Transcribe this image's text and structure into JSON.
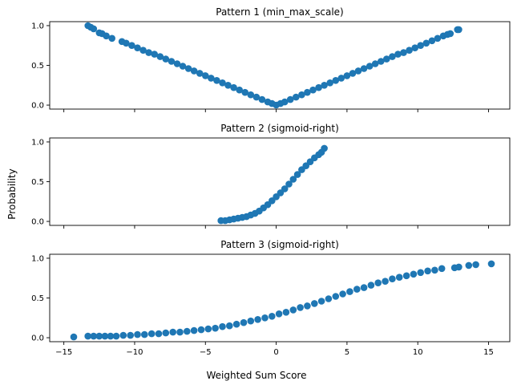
{
  "figure": {
    "xlabel": "Weighted Sum Score",
    "ylabel": "Probability",
    "marker_color": "#1f77b4"
  },
  "chart_data": [
    {
      "type": "scatter",
      "title": "Pattern 1 (min_max_scale)",
      "xlim": [
        -16,
        16.5
      ],
      "ylim": [
        -0.05,
        1.05
      ],
      "yticks": [
        0.0,
        0.5,
        1.0
      ],
      "ytick_labels": [
        "0.0",
        "0.5",
        "1.0"
      ],
      "xticks": [
        -15,
        -10,
        -5,
        0,
        5,
        10,
        15
      ],
      "xtick_labels": [],
      "series": [
        {
          "points": [
            [
              -13.3,
              1.0
            ],
            [
              -13.1,
              0.98
            ],
            [
              -12.9,
              0.96
            ],
            [
              -12.5,
              0.91
            ],
            [
              -12.3,
              0.9
            ],
            [
              -12.0,
              0.87
            ],
            [
              -11.6,
              0.84
            ],
            [
              -10.9,
              0.8
            ],
            [
              -10.6,
              0.78
            ],
            [
              -10.2,
              0.75
            ],
            [
              -9.8,
              0.72
            ],
            [
              -9.4,
              0.69
            ],
            [
              -9.0,
              0.66
            ],
            [
              -8.6,
              0.64
            ],
            [
              -8.2,
              0.61
            ],
            [
              -7.8,
              0.58
            ],
            [
              -7.4,
              0.55
            ],
            [
              -7.0,
              0.52
            ],
            [
              -6.6,
              0.49
            ],
            [
              -6.2,
              0.46
            ],
            [
              -5.8,
              0.43
            ],
            [
              -5.4,
              0.4
            ],
            [
              -5.0,
              0.37
            ],
            [
              -4.6,
              0.34
            ],
            [
              -4.2,
              0.31
            ],
            [
              -3.8,
              0.28
            ],
            [
              -3.4,
              0.25
            ],
            [
              -3.0,
              0.22
            ],
            [
              -2.6,
              0.19
            ],
            [
              -2.2,
              0.16
            ],
            [
              -1.8,
              0.13
            ],
            [
              -1.4,
              0.1
            ],
            [
              -1.0,
              0.07
            ],
            [
              -0.6,
              0.04
            ],
            [
              -0.3,
              0.02
            ],
            [
              0.0,
              0.0
            ],
            [
              0.3,
              0.02
            ],
            [
              0.6,
              0.04
            ],
            [
              1.0,
              0.07
            ],
            [
              1.4,
              0.1
            ],
            [
              1.8,
              0.13
            ],
            [
              2.2,
              0.16
            ],
            [
              2.6,
              0.19
            ],
            [
              3.0,
              0.22
            ],
            [
              3.4,
              0.25
            ],
            [
              3.8,
              0.28
            ],
            [
              4.2,
              0.31
            ],
            [
              4.6,
              0.34
            ],
            [
              5.0,
              0.37
            ],
            [
              5.4,
              0.4
            ],
            [
              5.8,
              0.43
            ],
            [
              6.2,
              0.46
            ],
            [
              6.6,
              0.49
            ],
            [
              7.0,
              0.52
            ],
            [
              7.4,
              0.55
            ],
            [
              7.8,
              0.58
            ],
            [
              8.2,
              0.61
            ],
            [
              8.6,
              0.64
            ],
            [
              9.0,
              0.66
            ],
            [
              9.4,
              0.69
            ],
            [
              9.8,
              0.72
            ],
            [
              10.2,
              0.75
            ],
            [
              10.6,
              0.78
            ],
            [
              11.0,
              0.81
            ],
            [
              11.4,
              0.84
            ],
            [
              11.8,
              0.87
            ],
            [
              12.1,
              0.89
            ],
            [
              12.3,
              0.9
            ],
            [
              12.8,
              0.95
            ],
            [
              12.9,
              0.95
            ]
          ]
        }
      ]
    },
    {
      "type": "scatter",
      "title": "Pattern 2 (sigmoid-right)",
      "xlim": [
        -16,
        16.5
      ],
      "ylim": [
        -0.05,
        1.05
      ],
      "yticks": [
        0.0,
        0.5,
        1.0
      ],
      "ytick_labels": [
        "0.0",
        "0.5",
        "1.0"
      ],
      "xticks": [
        -15,
        -10,
        -5,
        0,
        5,
        10,
        15
      ],
      "xtick_labels": [],
      "series": [
        {
          "points": [
            [
              -3.9,
              0.01
            ],
            [
              -3.6,
              0.01
            ],
            [
              -3.3,
              0.02
            ],
            [
              -3.0,
              0.03
            ],
            [
              -2.7,
              0.04
            ],
            [
              -2.4,
              0.05
            ],
            [
              -2.1,
              0.06
            ],
            [
              -1.8,
              0.08
            ],
            [
              -1.5,
              0.1
            ],
            [
              -1.2,
              0.13
            ],
            [
              -0.9,
              0.17
            ],
            [
              -0.6,
              0.21
            ],
            [
              -0.3,
              0.26
            ],
            [
              0.0,
              0.31
            ],
            [
              0.3,
              0.36
            ],
            [
              0.6,
              0.41
            ],
            [
              0.9,
              0.47
            ],
            [
              1.2,
              0.53
            ],
            [
              1.5,
              0.59
            ],
            [
              1.8,
              0.65
            ],
            [
              2.1,
              0.7
            ],
            [
              2.4,
              0.75
            ],
            [
              2.7,
              0.8
            ],
            [
              3.0,
              0.84
            ],
            [
              3.2,
              0.87
            ],
            [
              3.4,
              0.92
            ]
          ]
        }
      ]
    },
    {
      "type": "scatter",
      "title": "Pattern 3 (sigmoid-right)",
      "xlim": [
        -16,
        16.5
      ],
      "ylim": [
        -0.05,
        1.05
      ],
      "yticks": [
        0.0,
        0.5,
        1.0
      ],
      "ytick_labels": [
        "0.0",
        "0.5",
        "1.0"
      ],
      "xticks": [
        -15,
        -10,
        -5,
        0,
        5,
        10,
        15
      ],
      "xtick_labels": [
        "−15",
        "−10",
        "−5",
        "0",
        "5",
        "10",
        "15"
      ],
      "series": [
        {
          "points": [
            [
              -14.3,
              0.01
            ],
            [
              -13.3,
              0.02
            ],
            [
              -12.9,
              0.02
            ],
            [
              -12.5,
              0.02
            ],
            [
              -12.1,
              0.02
            ],
            [
              -11.7,
              0.02
            ],
            [
              -11.3,
              0.02
            ],
            [
              -10.8,
              0.03
            ],
            [
              -10.3,
              0.03
            ],
            [
              -9.8,
              0.04
            ],
            [
              -9.3,
              0.04
            ],
            [
              -8.8,
              0.05
            ],
            [
              -8.3,
              0.05
            ],
            [
              -7.8,
              0.06
            ],
            [
              -7.3,
              0.07
            ],
            [
              -6.8,
              0.07
            ],
            [
              -6.3,
              0.08
            ],
            [
              -5.8,
              0.09
            ],
            [
              -5.3,
              0.1
            ],
            [
              -4.8,
              0.11
            ],
            [
              -4.3,
              0.12
            ],
            [
              -3.8,
              0.14
            ],
            [
              -3.3,
              0.15
            ],
            [
              -2.8,
              0.17
            ],
            [
              -2.3,
              0.19
            ],
            [
              -1.8,
              0.21
            ],
            [
              -1.3,
              0.23
            ],
            [
              -0.8,
              0.25
            ],
            [
              -0.3,
              0.27
            ],
            [
              0.2,
              0.3
            ],
            [
              0.7,
              0.32
            ],
            [
              1.2,
              0.35
            ],
            [
              1.7,
              0.38
            ],
            [
              2.2,
              0.4
            ],
            [
              2.7,
              0.43
            ],
            [
              3.2,
              0.46
            ],
            [
              3.7,
              0.49
            ],
            [
              4.2,
              0.52
            ],
            [
              4.7,
              0.55
            ],
            [
              5.2,
              0.58
            ],
            [
              5.7,
              0.61
            ],
            [
              6.2,
              0.63
            ],
            [
              6.7,
              0.66
            ],
            [
              7.2,
              0.69
            ],
            [
              7.7,
              0.71
            ],
            [
              8.2,
              0.74
            ],
            [
              8.7,
              0.76
            ],
            [
              9.2,
              0.78
            ],
            [
              9.7,
              0.8
            ],
            [
              10.2,
              0.82
            ],
            [
              10.7,
              0.84
            ],
            [
              11.2,
              0.85
            ],
            [
              11.7,
              0.87
            ],
            [
              12.6,
              0.88
            ],
            [
              12.9,
              0.89
            ],
            [
              13.6,
              0.91
            ],
            [
              14.1,
              0.92
            ],
            [
              15.2,
              0.93
            ]
          ]
        }
      ]
    }
  ]
}
